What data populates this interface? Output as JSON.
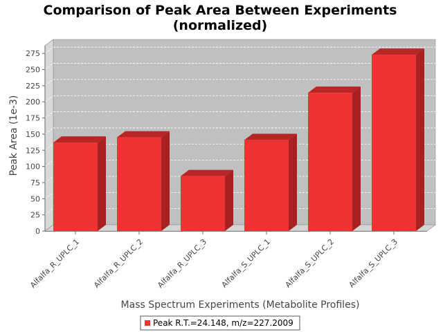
{
  "chart_data": {
    "type": "bar",
    "title": "Comparison of Peak Area Between Experiments",
    "subtitle": "(normalized)",
    "xlabel": "Mass Spectrum Experiments (Metabolite Profiles)",
    "ylabel": "Peak Area (1e-3)",
    "categories": [
      "Alfalfa_R_UPLC_1",
      "Alfalfa_R_UPLC_2",
      "Alfalfa_R_UPLC_3",
      "Alfalfa_S_UPLC_1",
      "Alfalfa_S_UPLC_2",
      "Alfalfa_S_UPLC_3"
    ],
    "series": [
      {
        "name": "Peak R.T.=24.148, m/z=227.2009",
        "values": [
          137,
          145,
          85,
          141,
          214,
          273
        ]
      }
    ],
    "ylim": [
      0,
      287
    ],
    "yticks": [
      0,
      25,
      50,
      75,
      100,
      125,
      150,
      175,
      200,
      225,
      250,
      275
    ],
    "grid": true,
    "legend_position": "bottom",
    "colors": {
      "bar_front": "#ee3333",
      "bar_top": "#b82626",
      "bar_side": "#a82020",
      "plot_bg": "#c0c0c0",
      "plot_wall_left": "#d8d8d8",
      "plot_floor": "#d4d4d4",
      "gridline": "#ffffff"
    }
  }
}
